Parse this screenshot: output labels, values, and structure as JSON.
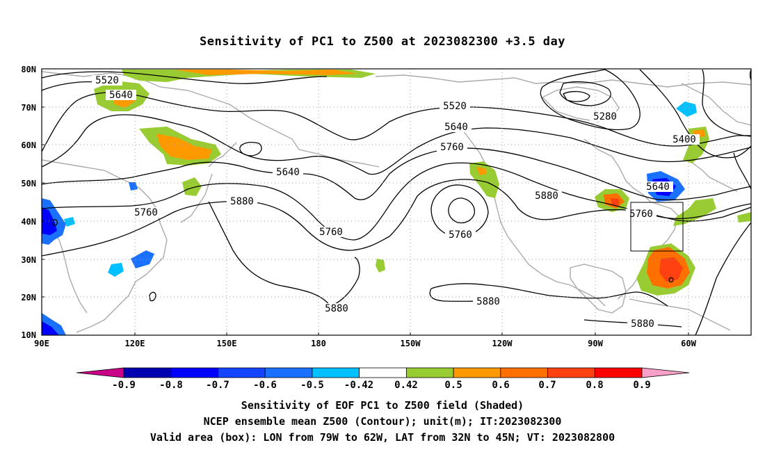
{
  "title": "Sensitivity of PC1 to Z500 at 2023082300 +3.5 day",
  "lat_labels": [
    "80N",
    "70N",
    "60N",
    "50N",
    "40N",
    "30N",
    "20N",
    "10N"
  ],
  "lon_labels": [
    "90E",
    "120E",
    "150E",
    "180",
    "150W",
    "120W",
    "90W",
    "60W"
  ],
  "contour_labels": [
    {
      "text": "5520"
    },
    {
      "text": "5640"
    },
    {
      "text": "5520"
    },
    {
      "text": "5640"
    },
    {
      "text": "5760"
    },
    {
      "text": "5280"
    },
    {
      "text": "5400"
    },
    {
      "text": "5640"
    },
    {
      "text": "5640"
    },
    {
      "text": "5760"
    },
    {
      "text": "5880"
    },
    {
      "text": "5760"
    },
    {
      "text": "5760"
    },
    {
      "text": "5880"
    },
    {
      "text": "5760"
    },
    {
      "text": "5880"
    },
    {
      "text": "5880"
    },
    {
      "text": "5880"
    }
  ],
  "colorbar": {
    "labels": [
      "-0.9",
      "-0.8",
      "-0.7",
      "-0.6",
      "-0.5",
      "-0.42",
      "0.42",
      "0.5",
      "0.6",
      "0.7",
      "0.8",
      "0.9"
    ],
    "colors": [
      "#0000b0",
      "#0000ff",
      "#1444ff",
      "#1a70ff",
      "#00c0ff",
      "#ffffff",
      "#99cc33",
      "#ff9900",
      "#ff7000",
      "#ff4010",
      "#ff0000"
    ],
    "low_end_color": "#cc0088",
    "high_end_color": "#f8a0c8"
  },
  "captions": {
    "line1": "Sensitivity of EOF PC1 to Z500 field (Shaded)",
    "line2": "NCEP ensemble mean Z500 (Contour); unit(m); IT:2023082300",
    "line3": "Valid area (box): LON from 79W to 62W, LAT from 32N to 45N; VT: 2023082800"
  },
  "valid_box": {
    "lon_min": -79,
    "lon_max": -62,
    "lat_min": 32,
    "lat_max": 45
  }
}
